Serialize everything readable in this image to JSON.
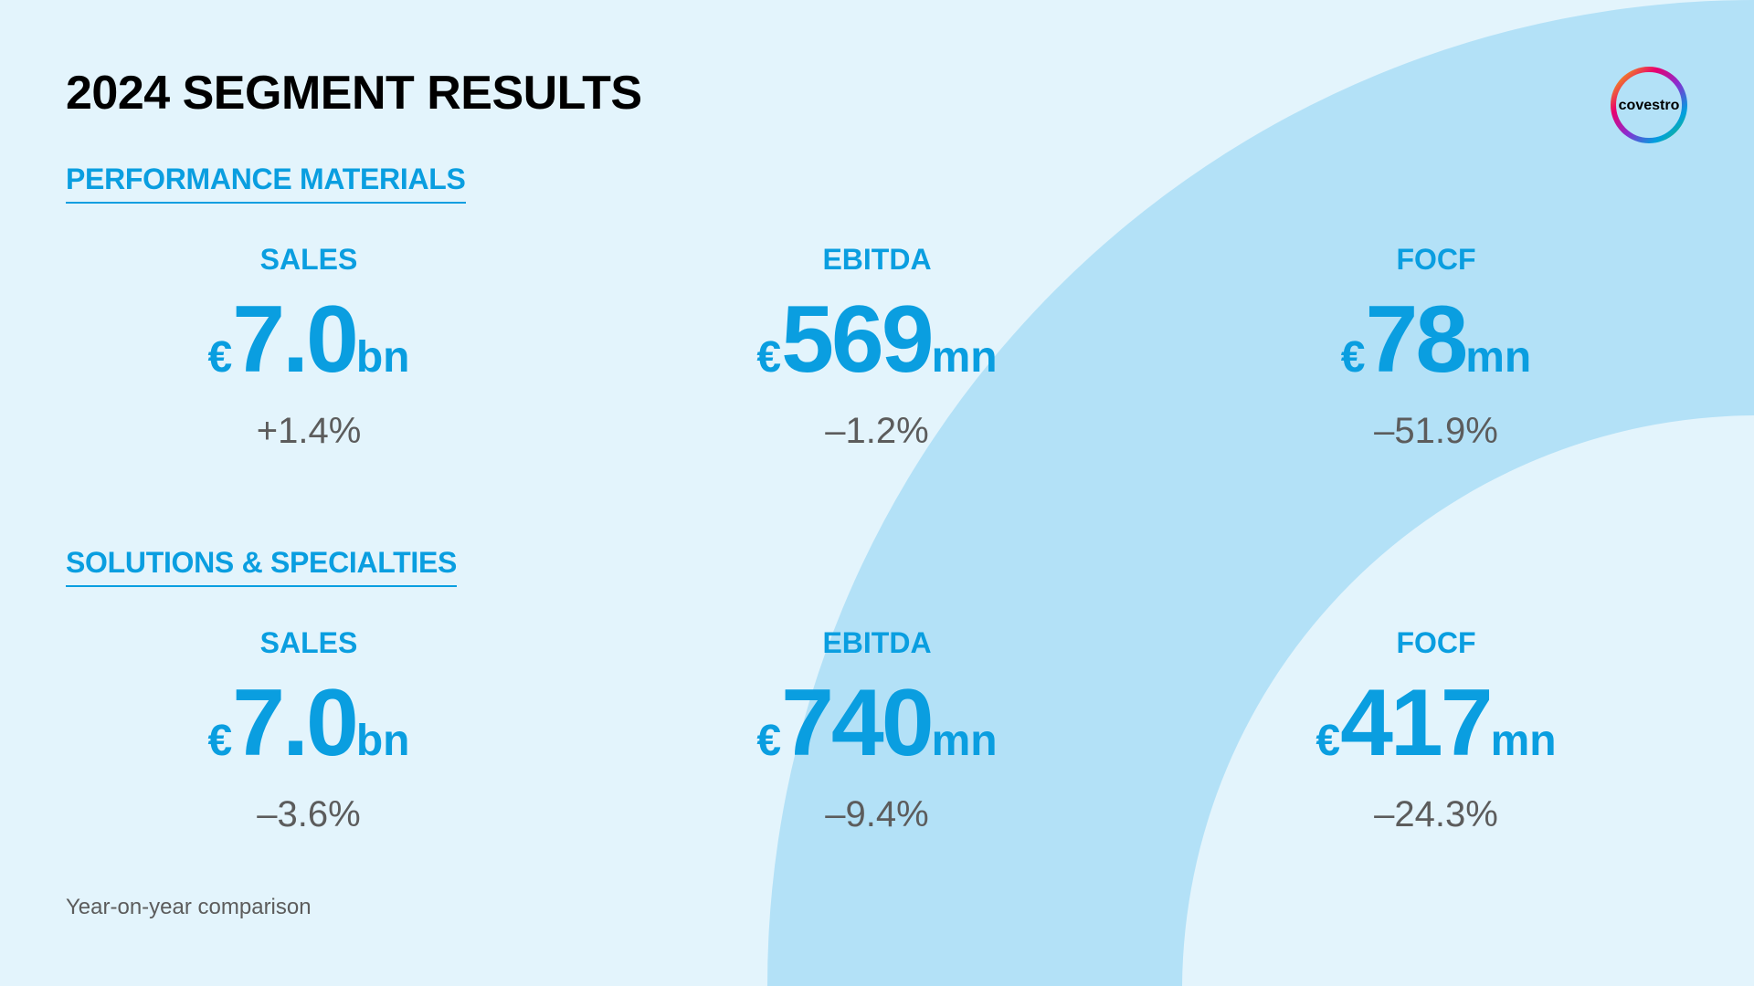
{
  "title": "2024 SEGMENT RESULTS",
  "logo": {
    "text": "covestro",
    "icon": "covestro-logo"
  },
  "colors": {
    "background": "#e3f4fc",
    "arc": "#b3e1f7",
    "accent": "#0a9ee0",
    "change_text": "#5c5c5c",
    "title": "#000000"
  },
  "segments": [
    {
      "name": "PERFORMANCE MATERIALS",
      "metrics": [
        {
          "label": "SALES",
          "currency": "€",
          "value": "7.0",
          "unit": "bn",
          "change": "+1.4%"
        },
        {
          "label": "EBITDA",
          "currency": "€",
          "value": "569",
          "unit": "mn",
          "change": "–1.2%"
        },
        {
          "label": "FOCF",
          "currency": "€",
          "value": "78",
          "unit": "mn",
          "change": "–51.9%"
        }
      ]
    },
    {
      "name": "SOLUTIONS & SPECIALTIES",
      "metrics": [
        {
          "label": "SALES",
          "currency": "€",
          "value": "7.0",
          "unit": "bn",
          "change": "–3.6%"
        },
        {
          "label": "EBITDA",
          "currency": "€",
          "value": "740",
          "unit": "mn",
          "change": "–9.4%"
        },
        {
          "label": "FOCF",
          "currency": "€",
          "value": "417",
          "unit": "mn",
          "change": "–24.3%"
        }
      ]
    }
  ],
  "footnote": "Year-on-year comparison"
}
